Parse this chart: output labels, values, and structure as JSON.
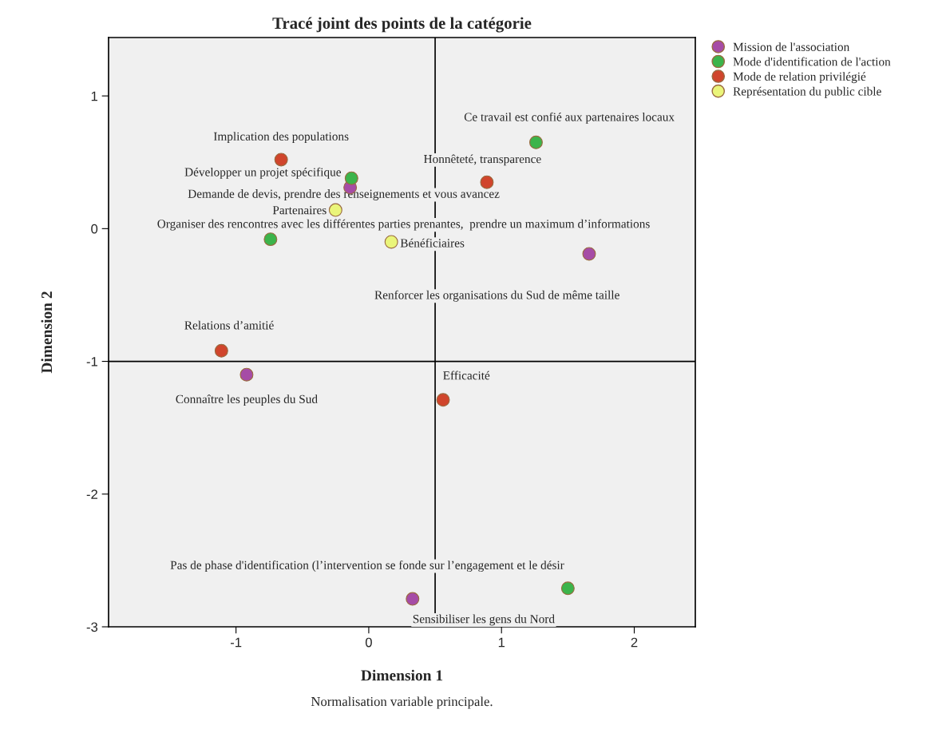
{
  "chart_data": {
    "type": "scatter",
    "title": "Tracé joint des points de la catégorie",
    "xlabel": "Dimension 1",
    "ylabel": "Dimension 2",
    "xlim": [
      -1.96,
      2.46
    ],
    "ylim": [
      -3,
      1.44
    ],
    "xticks": [
      -1,
      0,
      1,
      2
    ],
    "yticks": [
      -3,
      -2,
      -1,
      0,
      1
    ],
    "marker": "circle",
    "grid": false,
    "legend": "top right",
    "series": [
      {
        "name": "Mission de l'association",
        "color": "#a64ca6",
        "x": [
          -0.14,
          1.66,
          -0.92,
          0.33
        ],
        "values": [
          0.31,
          -0.19,
          -1.1,
          -2.79
        ]
      },
      {
        "name": "Mode d'identification de l'action",
        "color": "#3cb44b",
        "x": [
          -0.13,
          1.26,
          -0.74,
          1.5
        ],
        "values": [
          0.38,
          0.65,
          -0.08,
          -2.71
        ]
      },
      {
        "name": "Mode de relation privilégié",
        "color": "#d0452c",
        "x": [
          -0.66,
          0.89,
          -1.11,
          0.56
        ],
        "values": [
          0.52,
          0.35,
          -0.92,
          -1.29
        ]
      },
      {
        "name": "Représentation du public cible",
        "color": "#eaf57a",
        "x": [
          -0.25,
          0.17
        ],
        "values": [
          0.14,
          -0.1
        ]
      }
    ],
    "ref_lines": [
      {
        "axis": "x",
        "value": 0.5,
        "color": "#000000"
      },
      {
        "axis": "y",
        "value": -1,
        "color": "#000000"
      }
    ],
    "annotations": [
      {
        "text": "Développer un projet spécifique",
        "x": -0.14,
        "y": 0.31
      },
      {
        "text": "Renforcer les organisations du Sud de même taille",
        "x": 1.66,
        "y": -0.19
      },
      {
        "text": "Connaître les peuples du Sud",
        "x": -0.92,
        "y": -1.1
      },
      {
        "text": "Sensibiliser les gens du Nord",
        "x": 0.33,
        "y": -2.79
      },
      {
        "text": "Demande de devis, prendre des renseignements et vous avancez",
        "x": -0.13,
        "y": 0.38
      },
      {
        "text": "Ce travail est confié aux partenaires locaux",
        "x": 1.26,
        "y": 0.65
      },
      {
        "text": "Organiser des rencontres avec les différentes parties prenantes,  prendre un maximum d’informations",
        "x": -0.74,
        "y": -0.08
      },
      {
        "text": "Pas de phase d'identification (l’intervention se fonde sur l’engagement et le désir",
        "x": 1.5,
        "y": -2.71
      },
      {
        "text": "Implication des populations",
        "x": -0.66,
        "y": 0.52
      },
      {
        "text": "Honnêteté, transparence",
        "x": 0.89,
        "y": 0.35
      },
      {
        "text": "Relations d’amitié",
        "x": -1.11,
        "y": -0.92
      },
      {
        "text": "Efficacité",
        "x": 0.56,
        "y": -1.29
      },
      {
        "text": "Partenaires",
        "x": -0.25,
        "y": 0.14
      },
      {
        "text": "Bénéficiaires",
        "x": 0.17,
        "y": -0.1
      },
      "Normalisation variable principale."
    ]
  }
}
